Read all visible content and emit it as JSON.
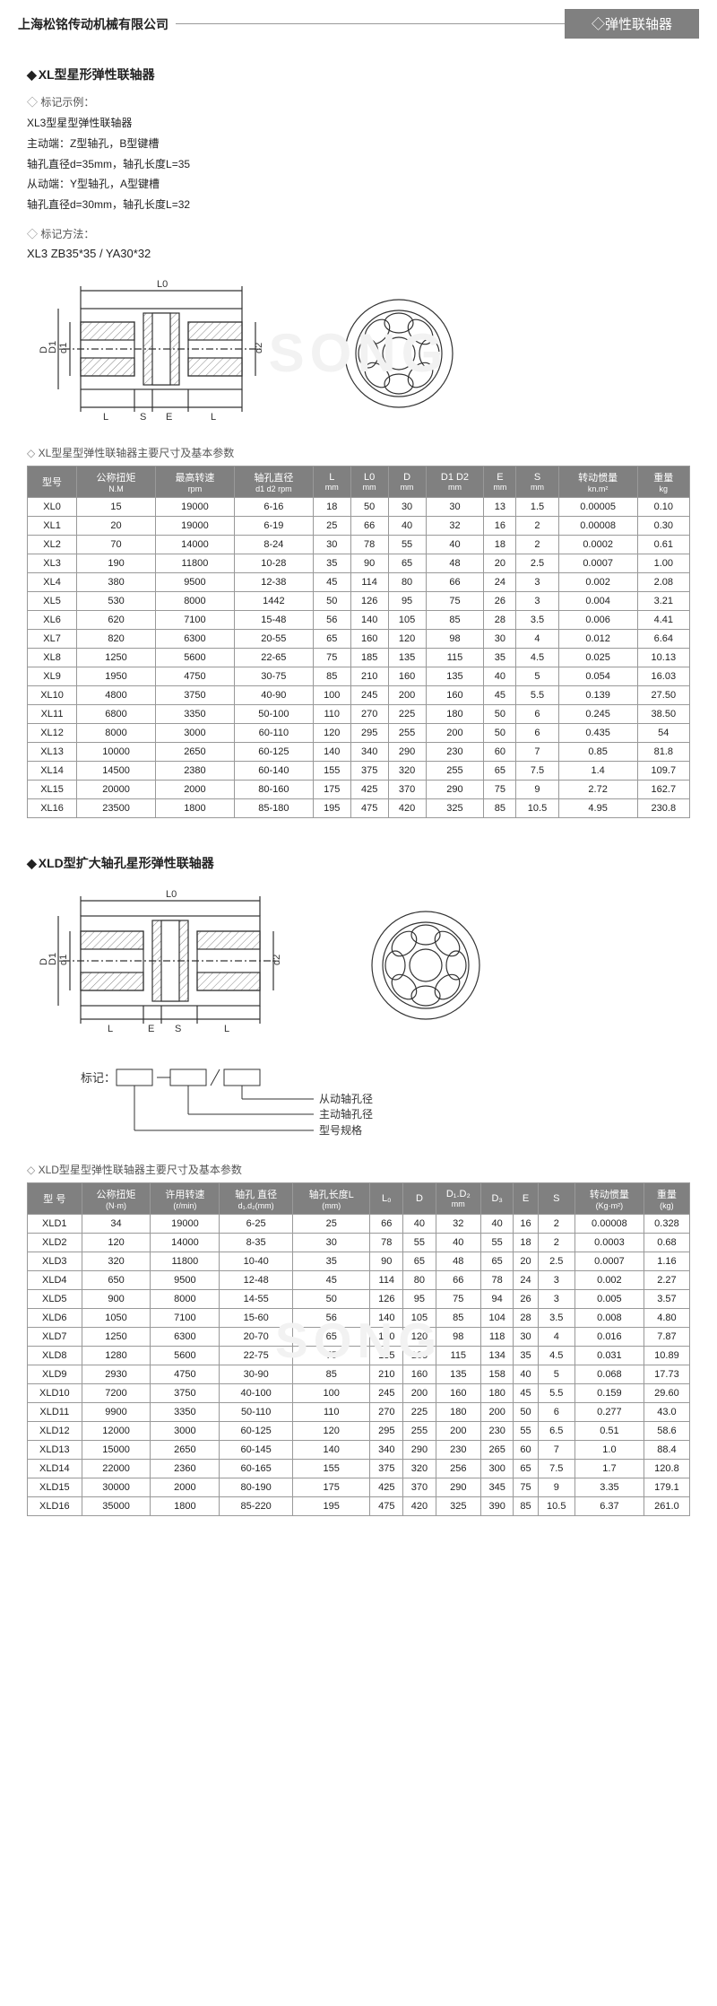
{
  "header": {
    "company": "上海松铭传动机械有限公司",
    "category": "◇弹性联轴器"
  },
  "sec1": {
    "title": "XL型星形弹性联轴器",
    "example_hdr": "标记示例：",
    "lines": [
      "XL3型星型弹性联轴器",
      "主动端：Z型轴孔，B型键槽",
      "轴孔直径d=35mm，轴孔长度L=35",
      "从动端：Y型轴孔，A型键槽",
      "轴孔直径d=30mm，轴孔长度L=32"
    ],
    "method_hdr": "标记方法：",
    "notation": "XL3 ZB35*35 / YA30*32",
    "tbl_title": "XL型星型弹性联轴器主要尺寸及基本参数",
    "headers": [
      {
        "t": "型号",
        "s": ""
      },
      {
        "t": "公称扭矩",
        "s": "N.M"
      },
      {
        "t": "最高转速",
        "s": "rpm"
      },
      {
        "t": "轴孔直径",
        "s": "d1 d2 rpm"
      },
      {
        "t": "L",
        "s": "mm"
      },
      {
        "t": "L0",
        "s": "mm"
      },
      {
        "t": "D",
        "s": "mm"
      },
      {
        "t": "D1 D2",
        "s": "mm"
      },
      {
        "t": "E",
        "s": "mm"
      },
      {
        "t": "S",
        "s": "mm"
      },
      {
        "t": "转动惯量",
        "s": "kn.m²"
      },
      {
        "t": "重量",
        "s": "kg"
      }
    ],
    "rows": [
      [
        "XL0",
        "15",
        "19000",
        "6-16",
        "18",
        "50",
        "30",
        "30",
        "13",
        "1.5",
        "0.00005",
        "0.10"
      ],
      [
        "XL1",
        "20",
        "19000",
        "6-19",
        "25",
        "66",
        "40",
        "32",
        "16",
        "2",
        "0.00008",
        "0.30"
      ],
      [
        "XL2",
        "70",
        "14000",
        "8-24",
        "30",
        "78",
        "55",
        "40",
        "18",
        "2",
        "0.0002",
        "0.61"
      ],
      [
        "XL3",
        "190",
        "11800",
        "10-28",
        "35",
        "90",
        "65",
        "48",
        "20",
        "2.5",
        "0.0007",
        "1.00"
      ],
      [
        "XL4",
        "380",
        "9500",
        "12-38",
        "45",
        "114",
        "80",
        "66",
        "24",
        "3",
        "0.002",
        "2.08"
      ],
      [
        "XL5",
        "530",
        "8000",
        "1442",
        "50",
        "126",
        "95",
        "75",
        "26",
        "3",
        "0.004",
        "3.21"
      ],
      [
        "XL6",
        "620",
        "7100",
        "15-48",
        "56",
        "140",
        "105",
        "85",
        "28",
        "3.5",
        "0.006",
        "4.41"
      ],
      [
        "XL7",
        "820",
        "6300",
        "20-55",
        "65",
        "160",
        "120",
        "98",
        "30",
        "4",
        "0.012",
        "6.64"
      ],
      [
        "XL8",
        "1250",
        "5600",
        "22-65",
        "75",
        "185",
        "135",
        "115",
        "35",
        "4.5",
        "0.025",
        "10.13"
      ],
      [
        "XL9",
        "1950",
        "4750",
        "30-75",
        "85",
        "210",
        "160",
        "135",
        "40",
        "5",
        "0.054",
        "16.03"
      ],
      [
        "XL10",
        "4800",
        "3750",
        "40-90",
        "100",
        "245",
        "200",
        "160",
        "45",
        "5.5",
        "0.139",
        "27.50"
      ],
      [
        "XL11",
        "6800",
        "3350",
        "50-100",
        "110",
        "270",
        "225",
        "180",
        "50",
        "6",
        "0.245",
        "38.50"
      ],
      [
        "XL12",
        "8000",
        "3000",
        "60-110",
        "120",
        "295",
        "255",
        "200",
        "50",
        "6",
        "0.435",
        "54"
      ],
      [
        "XL13",
        "10000",
        "2650",
        "60-125",
        "140",
        "340",
        "290",
        "230",
        "60",
        "7",
        "0.85",
        "81.8"
      ],
      [
        "XL14",
        "14500",
        "2380",
        "60-140",
        "155",
        "375",
        "320",
        "255",
        "65",
        "7.5",
        "1.4",
        "109.7"
      ],
      [
        "XL15",
        "20000",
        "2000",
        "80-160",
        "175",
        "425",
        "370",
        "290",
        "75",
        "9",
        "2.72",
        "162.7"
      ],
      [
        "XL16",
        "23500",
        "1800",
        "85-180",
        "195",
        "475",
        "420",
        "325",
        "85",
        "10.5",
        "4.95",
        "230.8"
      ]
    ]
  },
  "sec2": {
    "title": "XLD型扩大轴孔星形弹性联轴器",
    "mark_label": "标记：",
    "mark_lines": [
      "从动轴孔径",
      "主动轴孔径",
      "型号规格"
    ],
    "tbl_title": "XLD型星型弹性联轴器主要尺寸及基本参数",
    "headers": [
      {
        "t": "型 号",
        "s": ""
      },
      {
        "t": "公称扭矩",
        "s": "(N·m)"
      },
      {
        "t": "许用转速",
        "s": "(r/min)"
      },
      {
        "t": "轴孔 直径",
        "s": "d₁.d₂(mm)"
      },
      {
        "t": "轴孔长度L",
        "s": "(mm)"
      },
      {
        "t": "L₀",
        "s": ""
      },
      {
        "t": "D",
        "s": ""
      },
      {
        "t": "D₁.D₂",
        "s": "mm"
      },
      {
        "t": "D₃",
        "s": ""
      },
      {
        "t": "E",
        "s": ""
      },
      {
        "t": "S",
        "s": ""
      },
      {
        "t": "转动惯量",
        "s": "(Kg·m²)"
      },
      {
        "t": "重量",
        "s": "(kg)"
      }
    ],
    "rows": [
      [
        "XLD1",
        "34",
        "19000",
        "6-25",
        "25",
        "66",
        "40",
        "32",
        "40",
        "16",
        "2",
        "0.00008",
        "0.328"
      ],
      [
        "XLD2",
        "120",
        "14000",
        "8-35",
        "30",
        "78",
        "55",
        "40",
        "55",
        "18",
        "2",
        "0.0003",
        "0.68"
      ],
      [
        "XLD3",
        "320",
        "11800",
        "10-40",
        "35",
        "90",
        "65",
        "48",
        "65",
        "20",
        "2.5",
        "0.0007",
        "1.16"
      ],
      [
        "XLD4",
        "650",
        "9500",
        "12-48",
        "45",
        "114",
        "80",
        "66",
        "78",
        "24",
        "3",
        "0.002",
        "2.27"
      ],
      [
        "XLD5",
        "900",
        "8000",
        "14-55",
        "50",
        "126",
        "95",
        "75",
        "94",
        "26",
        "3",
        "0.005",
        "3.57"
      ],
      [
        "XLD6",
        "1050",
        "7100",
        "15-60",
        "56",
        "140",
        "105",
        "85",
        "104",
        "28",
        "3.5",
        "0.008",
        "4.80"
      ],
      [
        "XLD7",
        "1250",
        "6300",
        "20-70",
        "65",
        "160",
        "120",
        "98",
        "118",
        "30",
        "4",
        "0.016",
        "7.87"
      ],
      [
        "XLD8",
        "1280",
        "5600",
        "22-75",
        "75",
        "185",
        "135",
        "115",
        "134",
        "35",
        "4.5",
        "0.031",
        "10.89"
      ],
      [
        "XLD9",
        "2930",
        "4750",
        "30-90",
        "85",
        "210",
        "160",
        "135",
        "158",
        "40",
        "5",
        "0.068",
        "17.73"
      ],
      [
        "XLD10",
        "7200",
        "3750",
        "40-100",
        "100",
        "245",
        "200",
        "160",
        "180",
        "45",
        "5.5",
        "0.159",
        "29.60"
      ],
      [
        "XLD11",
        "9900",
        "3350",
        "50-110",
        "110",
        "270",
        "225",
        "180",
        "200",
        "50",
        "6",
        "0.277",
        "43.0"
      ],
      [
        "XLD12",
        "12000",
        "3000",
        "60-125",
        "120",
        "295",
        "255",
        "200",
        "230",
        "55",
        "6.5",
        "0.51",
        "58.6"
      ],
      [
        "XLD13",
        "15000",
        "2650",
        "60-145",
        "140",
        "340",
        "290",
        "230",
        "265",
        "60",
        "7",
        "1.0",
        "88.4"
      ],
      [
        "XLD14",
        "22000",
        "2360",
        "60-165",
        "155",
        "375",
        "320",
        "256",
        "300",
        "65",
        "7.5",
        "1.7",
        "120.8"
      ],
      [
        "XLD15",
        "30000",
        "2000",
        "80-190",
        "175",
        "425",
        "370",
        "290",
        "345",
        "75",
        "9",
        "3.35",
        "179.1"
      ],
      [
        "XLD16",
        "35000",
        "1800",
        "85-220",
        "195",
        "475",
        "420",
        "325",
        "390",
        "85",
        "10.5",
        "6.37",
        "261.0"
      ]
    ]
  },
  "dia": {
    "L0": "L0",
    "L": "L",
    "S": "S",
    "E": "E",
    "D": "D",
    "D1": "D1",
    "d1": "d1",
    "d2": "d2"
  },
  "colors": {
    "stroke": "#333",
    "hatch": "#888",
    "bg": "#fff",
    "wm": "#f0f0f0"
  }
}
